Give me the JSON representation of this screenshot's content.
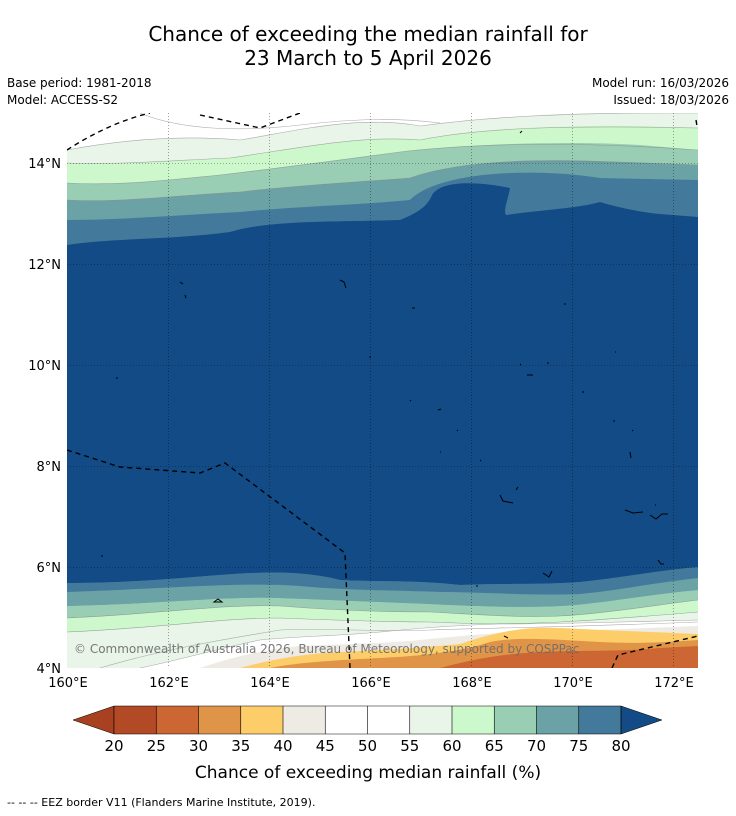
{
  "title": {
    "line1": "Chance of exceeding the median rainfall for",
    "line2": "23 March to 5 April 2026"
  },
  "meta": {
    "base_period": "Base period: 1981-2018",
    "model": "Model: ACCESS-S2",
    "model_run": "Model run: 16/03/2026",
    "issued": "Issued: 18/03/2026"
  },
  "map": {
    "lon_labels": [
      "160°E",
      "162°E",
      "164°E",
      "166°E",
      "168°E",
      "170°E",
      "172°E"
    ],
    "lat_labels": [
      "14°N",
      "12°N",
      "10°N",
      "8°N",
      "6°N",
      "4°N"
    ],
    "lon_range": [
      160,
      172.5
    ],
    "lat_range": [
      4,
      15
    ],
    "copyright": "© Commonwealth of Australia 2026, Bureau of Meteorology, supported by COSPPac"
  },
  "colorbar": {
    "ticks": [
      "20",
      "25",
      "30",
      "35",
      "40",
      "45",
      "50",
      "55",
      "60",
      "65",
      "70",
      "75",
      "80"
    ],
    "colors": {
      "below20": "#a8411f",
      "c20_25": "#b24a25",
      "c25_30": "#cc6633",
      "c30_35": "#e09448",
      "c35_40": "#fdcd6a",
      "c40_45": "#eeeae4",
      "c45_50": "#ffffff",
      "c50_55": "#ffffff",
      "c55_60": "#e8f5e8",
      "c60_65": "#ccf8cc",
      "c65_70": "#99cdb4",
      "c70_75": "#6aa2a6",
      "c75_80": "#437a9c",
      "above80": "#134b86"
    },
    "label": "Chance of exceeding median rainfall (%)"
  },
  "footer": {
    "legend": "--  --  -- EEZ border V11 (Flanders Marine Institute, 2019)."
  }
}
